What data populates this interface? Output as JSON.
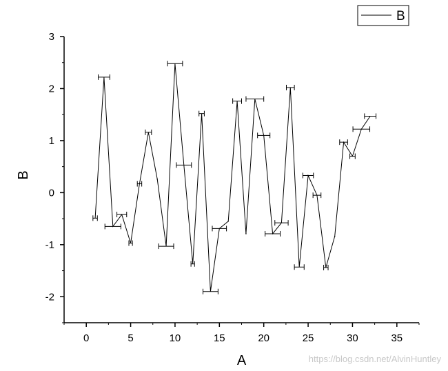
{
  "chart_data": {
    "type": "line",
    "xlabel": "A",
    "ylabel": "B",
    "xlim": [
      -2.5,
      37.5
    ],
    "ylim": [
      -2.5,
      3
    ],
    "xticks": [
      0,
      5,
      10,
      15,
      20,
      25,
      30,
      35
    ],
    "yticks": [
      -2,
      -1,
      0,
      1,
      2,
      3
    ],
    "legend": {
      "position": "top-right",
      "entries": [
        "B"
      ]
    },
    "series": [
      {
        "name": "B",
        "color": "#000000",
        "error_bars": "horizontal",
        "points": [
          {
            "x": 1,
            "y": -0.49,
            "xerr": 0.25
          },
          {
            "x": 2,
            "y": 2.22,
            "xerr": 0.65
          },
          {
            "x": 3,
            "y": -0.65,
            "xerr": 0.9
          },
          {
            "x": 4,
            "y": -0.42,
            "xerr": 0.55
          },
          {
            "x": 5,
            "y": -0.97,
            "xerr": 0.2
          },
          {
            "x": 6,
            "y": 0.17,
            "xerr": 0.25
          },
          {
            "x": 7,
            "y": 1.16,
            "xerr": 0.35
          },
          {
            "x": 8,
            "y": 0.26,
            "xerr": 0.0
          },
          {
            "x": 9,
            "y": -1.03,
            "xerr": 0.85
          },
          {
            "x": 10,
            "y": 2.48,
            "xerr": 0.85
          },
          {
            "x": 11,
            "y": 0.53,
            "xerr": 0.85
          },
          {
            "x": 12,
            "y": -1.37,
            "xerr": 0.2
          },
          {
            "x": 13,
            "y": 1.52,
            "xerr": 0.3
          },
          {
            "x": 14,
            "y": -1.9,
            "xerr": 0.85
          },
          {
            "x": 15,
            "y": -0.69,
            "xerr": 0.8
          },
          {
            "x": 16,
            "y": -0.55,
            "xerr": 0.0
          },
          {
            "x": 17,
            "y": 1.76,
            "xerr": 0.5
          },
          {
            "x": 18,
            "y": -0.79,
            "xerr": 0.0
          },
          {
            "x": 19,
            "y": 1.8,
            "xerr": 1.0
          },
          {
            "x": 20,
            "y": 1.1,
            "xerr": 0.7
          },
          {
            "x": 21,
            "y": -0.79,
            "xerr": 0.85
          },
          {
            "x": 22,
            "y": -0.58,
            "xerr": 0.75
          },
          {
            "x": 23,
            "y": 2.02,
            "xerr": 0.45
          },
          {
            "x": 24,
            "y": -1.43,
            "xerr": 0.55
          },
          {
            "x": 25,
            "y": 0.33,
            "xerr": 0.6
          },
          {
            "x": 26,
            "y": -0.05,
            "xerr": 0.45
          },
          {
            "x": 27,
            "y": -1.44,
            "xerr": 0.25
          },
          {
            "x": 28,
            "y": -0.84,
            "xerr": 0.0
          },
          {
            "x": 29,
            "y": 0.97,
            "xerr": 0.45
          },
          {
            "x": 30,
            "y": 0.7,
            "xerr": 0.3
          },
          {
            "x": 31,
            "y": 1.22,
            "xerr": 0.95
          },
          {
            "x": 32,
            "y": 1.47,
            "xerr": 0.65
          }
        ]
      }
    ]
  },
  "watermark": "https://blog.csdn.net/AlvinHuntley"
}
